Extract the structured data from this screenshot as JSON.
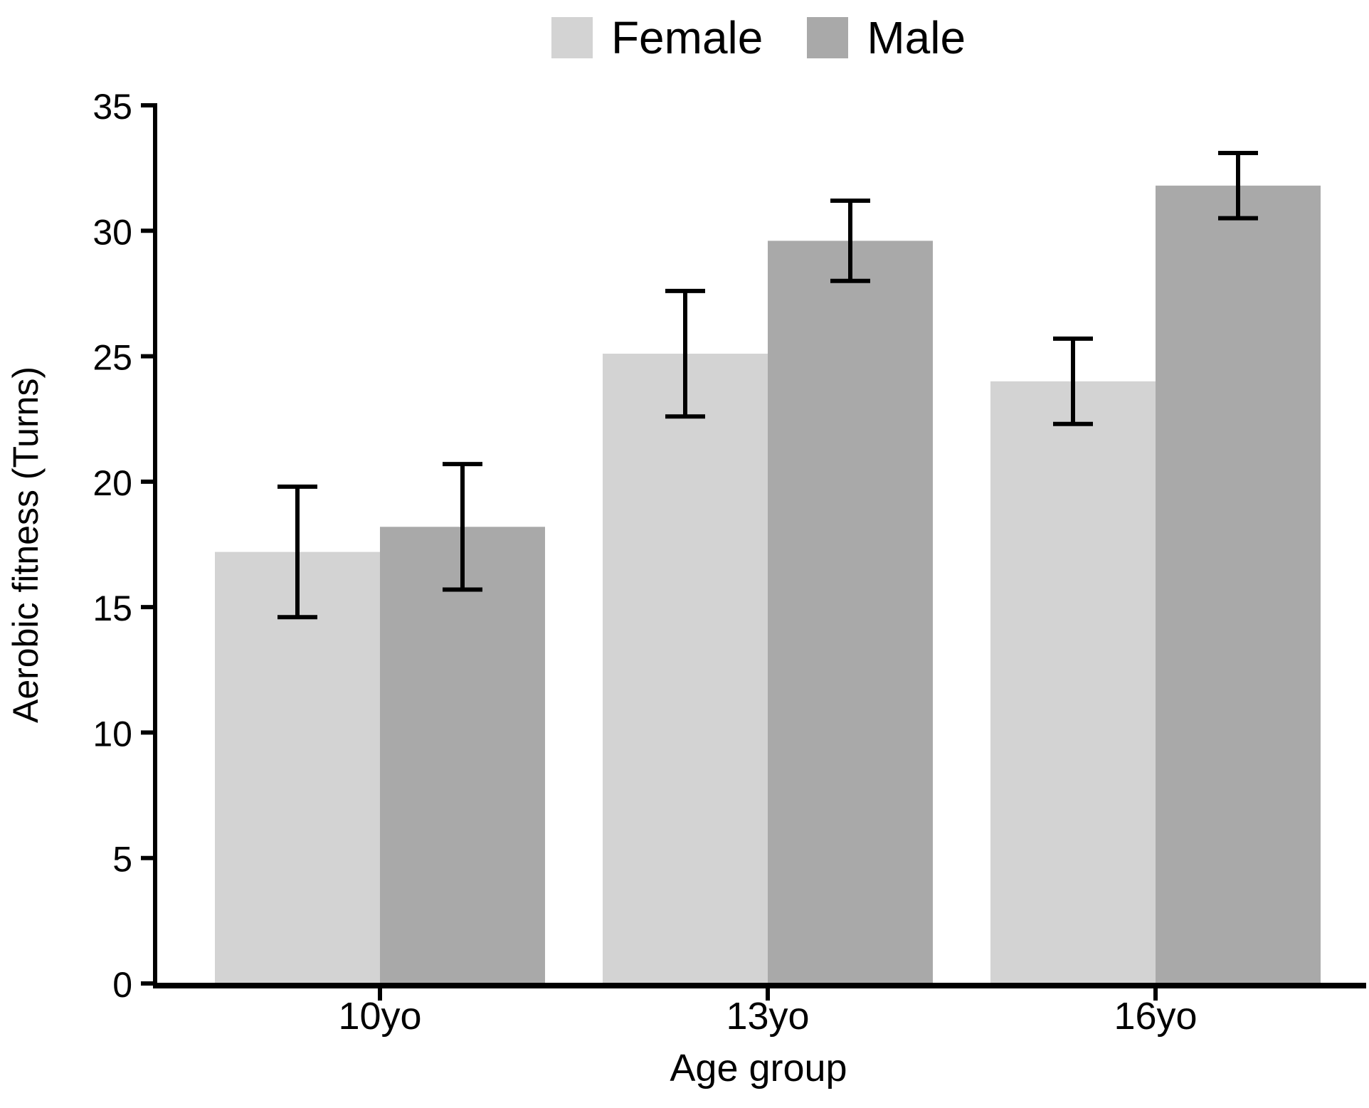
{
  "chart_data": {
    "type": "bar",
    "categories": [
      "10yo",
      "13yo",
      "16yo"
    ],
    "series": [
      {
        "name": "Female",
        "color": "#d3d3d3",
        "values": [
          17.2,
          25.1,
          24.0
        ],
        "error": [
          2.6,
          2.5,
          1.7
        ]
      },
      {
        "name": "Male",
        "color": "#a9a9a9",
        "values": [
          18.2,
          29.6,
          31.8
        ],
        "error": [
          2.5,
          1.6,
          1.3
        ]
      }
    ],
    "xlabel": "Age group",
    "ylabel": "Aerobic fitness (Turns)",
    "ylim": [
      0,
      35
    ],
    "yticks": [
      0,
      5,
      10,
      15,
      20,
      25,
      30,
      35
    ],
    "legend_position": "top-center",
    "grid": false,
    "error_bars": true,
    "axis_color": "#000000",
    "background_color": "#ffffff"
  }
}
